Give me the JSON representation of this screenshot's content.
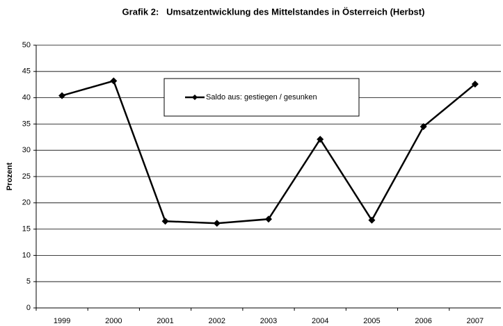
{
  "chart_data": {
    "type": "line",
    "title": "Grafik 2:   Umsatzentwicklung des Mittelstandes in Österreich (Herbst)",
    "y_label": "Prozent",
    "categories": [
      "1999",
      "2000",
      "2001",
      "2002",
      "2003",
      "2004",
      "2005",
      "2006",
      "2007"
    ],
    "series": [
      {
        "name": "Saldo aus: gestiegen / gesunken",
        "color": "#000000",
        "values": [
          40.4,
          43.2,
          16.5,
          16.1,
          16.9,
          32.1,
          16.7,
          34.5,
          42.6
        ]
      }
    ],
    "ylim": [
      0,
      50
    ],
    "yticks": [
      0,
      5,
      10,
      15,
      20,
      25,
      30,
      35,
      40,
      45,
      50
    ],
    "grid": true,
    "legend": "top-center"
  }
}
